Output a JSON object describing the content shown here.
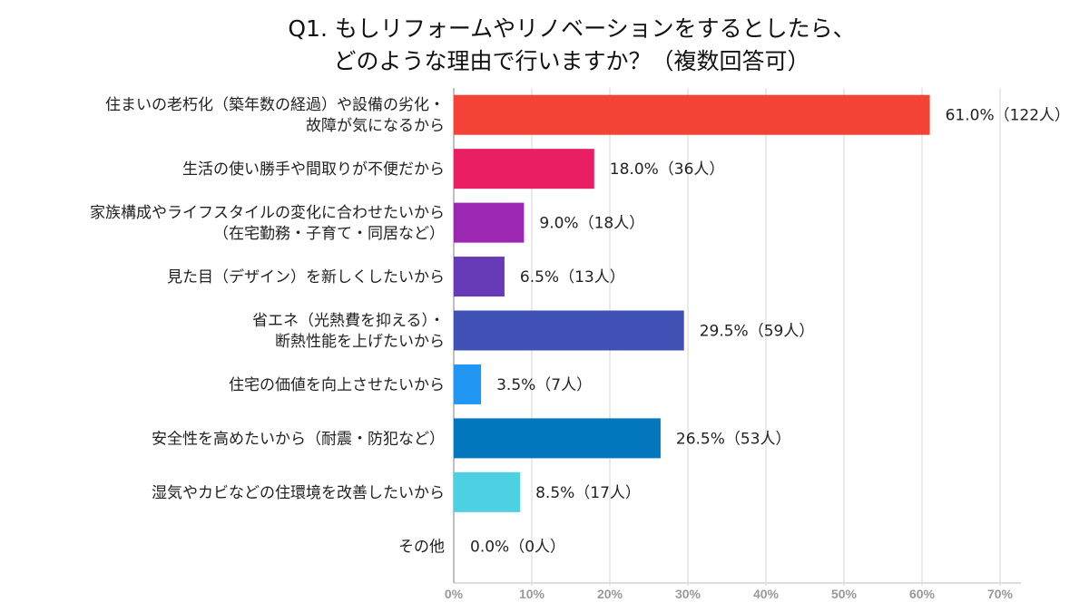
{
  "chart_data": {
    "type": "bar",
    "orientation": "horizontal",
    "title": [
      "Q1. もしリフォームやリノベーションをするとしたら、",
      "どのような理由で行いますか？（複数回答可）"
    ],
    "categories": [
      [
        "住まいの老朽化（築年数の経過）や設備の劣化・",
        "故障が気になるから"
      ],
      [
        "生活の使い勝手や間取りが不便だから"
      ],
      [
        "家族構成やライフスタイルの変化に合わせたいから",
        "（在宅勤務・子育て・同居など）"
      ],
      [
        "見た目（デザイン）を新しくしたいから"
      ],
      [
        "省エネ（光熱費を抑える）・",
        "断熱性能を上げたいから"
      ],
      [
        "住宅の価値を向上させたいから"
      ],
      [
        "安全性を高めたいから（耐震・防犯など）"
      ],
      [
        "湿気やカビなどの住環境を改善したいから"
      ],
      [
        "その他"
      ]
    ],
    "values": [
      61.0,
      18.0,
      9.0,
      6.5,
      29.5,
      3.5,
      26.5,
      8.5,
      0.0
    ],
    "data_labels": [
      "61.0%（122人）",
      "18.0%（36人）",
      "9.0%（18人）",
      "6.5%（13人）",
      "29.5%（59人）",
      "3.5%（7人）",
      "26.5%（53人）",
      "8.5%（17人）",
      "0.0%（0人）"
    ],
    "colors": [
      "#f44336",
      "#e91e63",
      "#9c27b0",
      "#673ab7",
      "#3f51b5",
      "#2196f3",
      "#0277bd",
      "#4dd0e1",
      "#00bcd4"
    ],
    "xlim": [
      0,
      70
    ],
    "xticks": [
      "0%",
      "10%",
      "20%",
      "30%",
      "40%",
      "50%",
      "60%",
      "70%"
    ],
    "grid": true
  }
}
